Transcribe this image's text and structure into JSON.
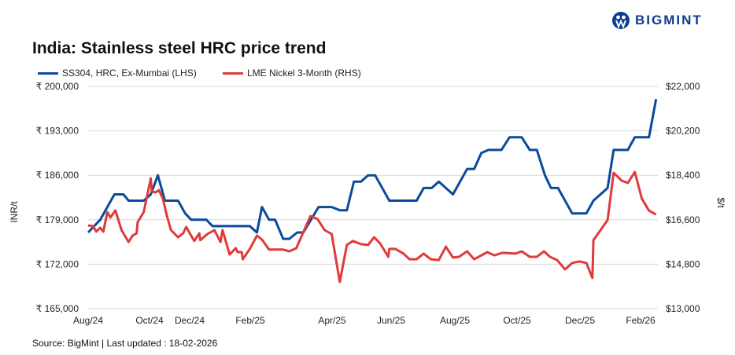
{
  "brand": {
    "logo_text": "BIGMINT",
    "color": "#0b3d91"
  },
  "footer": {
    "source": "Source: BigMint | Last updated : 18-02-2026"
  },
  "chart_data": {
    "type": "line",
    "title": "India: Stainless steel HRC price trend",
    "ylabel_left": "INR/t",
    "ylabel_right": "$/t",
    "ylim_left": [
      165000,
      200000
    ],
    "ylim_right": [
      13000,
      22000
    ],
    "yticks_left": [
      "₹ 165,000",
      "₹ 172,000",
      "₹ 179,000",
      "₹ 186,000",
      "₹ 193,000",
      "₹ 200,000"
    ],
    "yticks_right": [
      "$13,000",
      "$14,800",
      "$16,600",
      "$18,400",
      "$20,200",
      "$22,000"
    ],
    "xticks": [
      "Aug/24",
      "Oct/24",
      "Dec/24",
      "Feb/25",
      "Apr/25",
      "Jun/25",
      "Aug/25",
      "Oct/25",
      "Dec/25",
      "Feb/26"
    ],
    "grid": true,
    "legend_position": "top-left",
    "series": [
      {
        "name": "SS304, HRC, Ex-Mumbai (LHS)",
        "axis": "left",
        "color": "#0a4a9c",
        "points": [
          [
            "2024-08-01",
            177000
          ],
          [
            "2024-08-07",
            178000
          ],
          [
            "2024-08-13",
            179000
          ],
          [
            "2024-08-20",
            181000
          ],
          [
            "2024-08-27",
            183000
          ],
          [
            "2024-09-05",
            183000
          ],
          [
            "2024-09-10",
            182000
          ],
          [
            "2024-09-25",
            182000
          ],
          [
            "2024-10-02",
            183000
          ],
          [
            "2024-10-09",
            186000
          ],
          [
            "2024-10-16",
            182000
          ],
          [
            "2024-10-29",
            182000
          ],
          [
            "2024-11-05",
            180000
          ],
          [
            "2024-11-11",
            179000
          ],
          [
            "2024-11-26",
            179000
          ],
          [
            "2024-12-02",
            178000
          ],
          [
            "2025-01-08",
            178000
          ],
          [
            "2025-01-15",
            177000
          ],
          [
            "2025-01-20",
            181000
          ],
          [
            "2025-01-27",
            179000
          ],
          [
            "2025-02-02",
            179000
          ],
          [
            "2025-02-10",
            176000
          ],
          [
            "2025-02-16",
            176000
          ],
          [
            "2025-02-24",
            177000
          ],
          [
            "2025-03-02",
            177000
          ],
          [
            "2025-03-17",
            181000
          ],
          [
            "2025-03-30",
            181000
          ],
          [
            "2025-04-07",
            180500
          ],
          [
            "2025-04-14",
            180500
          ],
          [
            "2025-04-21",
            185000
          ],
          [
            "2025-04-28",
            185000
          ],
          [
            "2025-05-05",
            186000
          ],
          [
            "2025-05-12",
            186000
          ],
          [
            "2025-05-26",
            182000
          ],
          [
            "2025-06-22",
            182000
          ],
          [
            "2025-06-29",
            184000
          ],
          [
            "2025-07-07",
            184000
          ],
          [
            "2025-07-14",
            185000
          ],
          [
            "2025-07-28",
            183000
          ],
          [
            "2025-08-11",
            187000
          ],
          [
            "2025-08-18",
            187000
          ],
          [
            "2025-08-25",
            189500
          ],
          [
            "2025-09-01",
            190000
          ],
          [
            "2025-09-14",
            190000
          ],
          [
            "2025-09-22",
            192000
          ],
          [
            "2025-10-04",
            192000
          ],
          [
            "2025-10-12",
            190000
          ],
          [
            "2025-10-19",
            190000
          ],
          [
            "2025-10-27",
            186000
          ],
          [
            "2025-11-02",
            184000
          ],
          [
            "2025-11-09",
            184000
          ],
          [
            "2025-11-23",
            180000
          ],
          [
            "2025-12-07",
            180000
          ],
          [
            "2025-12-14",
            182000
          ],
          [
            "2025-12-28",
            184000
          ],
          [
            "2026-01-03",
            190000
          ],
          [
            "2026-01-17",
            190000
          ],
          [
            "2026-01-24",
            192000
          ],
          [
            "2026-02-07",
            192000
          ],
          [
            "2026-02-14",
            198000
          ]
        ]
      },
      {
        "name": "LME Nickel 3-Month (RHS)",
        "axis": "right",
        "color": "#e03a3a",
        "points": [
          [
            "2024-08-01",
            16370
          ],
          [
            "2024-08-06",
            16340
          ],
          [
            "2024-08-09",
            16120
          ],
          [
            "2024-08-13",
            16280
          ],
          [
            "2024-08-16",
            16120
          ],
          [
            "2024-08-20",
            16910
          ],
          [
            "2024-08-23",
            16690
          ],
          [
            "2024-08-28",
            16980
          ],
          [
            "2024-09-03",
            16180
          ],
          [
            "2024-09-10",
            15700
          ],
          [
            "2024-09-14",
            15960
          ],
          [
            "2024-09-18",
            16050
          ],
          [
            "2024-09-19",
            16500
          ],
          [
            "2024-09-25",
            16910
          ],
          [
            "2024-10-02",
            18280
          ],
          [
            "2024-10-03",
            17740
          ],
          [
            "2024-10-07",
            17710
          ],
          [
            "2024-10-10",
            17800
          ],
          [
            "2024-10-14",
            17450
          ],
          [
            "2024-10-18",
            16750
          ],
          [
            "2024-10-22",
            16180
          ],
          [
            "2024-10-29",
            15890
          ],
          [
            "2024-11-03",
            16050
          ],
          [
            "2024-11-06",
            16310
          ],
          [
            "2024-11-10",
            16020
          ],
          [
            "2024-11-14",
            15740
          ],
          [
            "2024-11-19",
            16050
          ],
          [
            "2024-11-20",
            15770
          ],
          [
            "2024-11-27",
            16020
          ],
          [
            "2024-12-04",
            16180
          ],
          [
            "2024-12-10",
            15700
          ],
          [
            "2024-12-12",
            16180
          ],
          [
            "2024-12-19",
            15190
          ],
          [
            "2024-12-25",
            15450
          ],
          [
            "2024-12-27",
            15290
          ],
          [
            "2024-12-31",
            15290
          ],
          [
            "2025-01-01",
            15000
          ],
          [
            "2025-01-08",
            15420
          ],
          [
            "2025-01-15",
            15960
          ],
          [
            "2025-01-20",
            15800
          ],
          [
            "2025-01-27",
            15390
          ],
          [
            "2025-02-10",
            15390
          ],
          [
            "2025-02-16",
            15320
          ],
          [
            "2025-02-23",
            15450
          ],
          [
            "2025-03-09",
            16750
          ],
          [
            "2025-03-16",
            16630
          ],
          [
            "2025-03-23",
            16180
          ],
          [
            "2025-03-30",
            16020
          ],
          [
            "2025-04-07",
            14080
          ],
          [
            "2025-04-14",
            15580
          ],
          [
            "2025-04-20",
            15740
          ],
          [
            "2025-04-28",
            15610
          ],
          [
            "2025-05-05",
            15580
          ],
          [
            "2025-05-11",
            15890
          ],
          [
            "2025-05-17",
            15640
          ],
          [
            "2025-05-25",
            15100
          ],
          [
            "2025-05-26",
            15420
          ],
          [
            "2025-06-01",
            15420
          ],
          [
            "2025-06-09",
            15230
          ],
          [
            "2025-06-15",
            15000
          ],
          [
            "2025-06-22",
            15000
          ],
          [
            "2025-06-29",
            15230
          ],
          [
            "2025-07-06",
            15000
          ],
          [
            "2025-07-14",
            14970
          ],
          [
            "2025-07-21",
            15510
          ],
          [
            "2025-07-28",
            15070
          ],
          [
            "2025-08-03",
            15100
          ],
          [
            "2025-08-11",
            15320
          ],
          [
            "2025-08-18",
            15000
          ],
          [
            "2025-08-31",
            15290
          ],
          [
            "2025-09-07",
            15160
          ],
          [
            "2025-09-15",
            15260
          ],
          [
            "2025-09-28",
            15230
          ],
          [
            "2025-10-04",
            15320
          ],
          [
            "2025-10-12",
            15100
          ],
          [
            "2025-10-19",
            15100
          ],
          [
            "2025-10-26",
            15320
          ],
          [
            "2025-11-01",
            15100
          ],
          [
            "2025-11-08",
            14970
          ],
          [
            "2025-11-16",
            14590
          ],
          [
            "2025-11-23",
            14850
          ],
          [
            "2025-11-30",
            14910
          ],
          [
            "2025-12-07",
            14850
          ],
          [
            "2025-12-13",
            14240
          ],
          [
            "2025-12-14",
            15770
          ],
          [
            "2025-12-28",
            16590
          ],
          [
            "2026-01-03",
            18500
          ],
          [
            "2026-01-11",
            18180
          ],
          [
            "2026-01-17",
            18090
          ],
          [
            "2026-01-24",
            18530
          ],
          [
            "2026-01-31",
            17450
          ],
          [
            "2026-02-07",
            16970
          ],
          [
            "2026-02-14",
            16810
          ]
        ]
      }
    ]
  }
}
